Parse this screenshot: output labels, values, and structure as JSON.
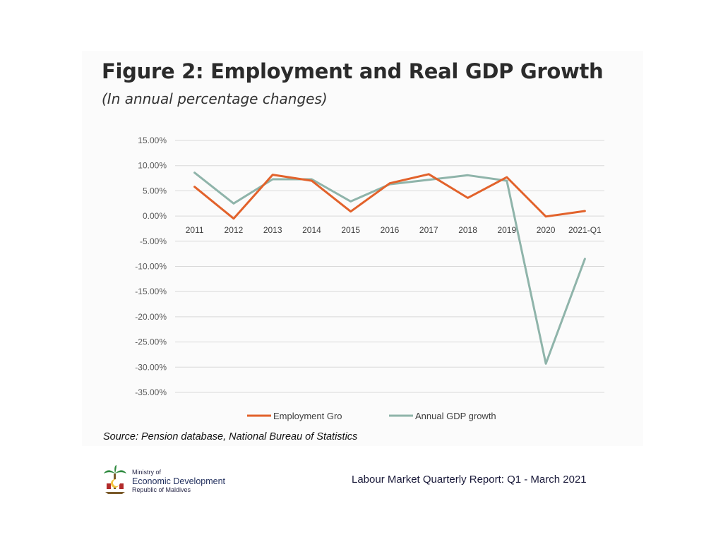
{
  "page": {
    "title": "Figure 2: Employment and Real GDP Growth",
    "subtitle": "(In annual percentage changes)",
    "source": "Source: Pension database, National Bureau of Statistics",
    "ministry_line1": "Ministry of",
    "ministry_line2": "Economic Development",
    "ministry_line3": "Republic of Maldives",
    "report_title": "Labour Market Quarterly Report: Q1 - March 2021"
  },
  "colors": {
    "employment": "#e2622b",
    "gdp": "#8fb4aa",
    "grid": "#d9d9d9",
    "tick": "#595959"
  },
  "chart_data": {
    "type": "line",
    "title": "Figure 2: Employment and Real GDP Growth",
    "subtitle": "(In annual percentage changes)",
    "xlabel": "",
    "ylabel": "",
    "categories": [
      "2011",
      "2012",
      "2013",
      "2014",
      "2015",
      "2016",
      "2017",
      "2018",
      "2019",
      "2020",
      "2021-Q1"
    ],
    "y_ticks": [
      15,
      10,
      5,
      0,
      -5,
      -10,
      -15,
      -20,
      -25,
      -30,
      -35
    ],
    "y_tick_labels": [
      "15.00%",
      "10.00%",
      "5.00%",
      "0.00%",
      "-5.00%",
      "-10.00%",
      "-15.00%",
      "-20.00%",
      "-25.00%",
      "-30.00%",
      "-35.00%"
    ],
    "ylim": [
      -35,
      15
    ],
    "grid": true,
    "legend_position": "bottom",
    "series": [
      {
        "name": "Employment Gro",
        "values": [
          5.8,
          -0.5,
          8.2,
          7.0,
          0.9,
          6.5,
          8.3,
          3.6,
          7.7,
          -0.1,
          1.0
        ]
      },
      {
        "name": "Annual GDP growth",
        "values": [
          8.6,
          2.5,
          7.3,
          7.3,
          2.9,
          6.3,
          7.2,
          8.1,
          7.0,
          -29.3,
          -8.5
        ]
      }
    ]
  }
}
